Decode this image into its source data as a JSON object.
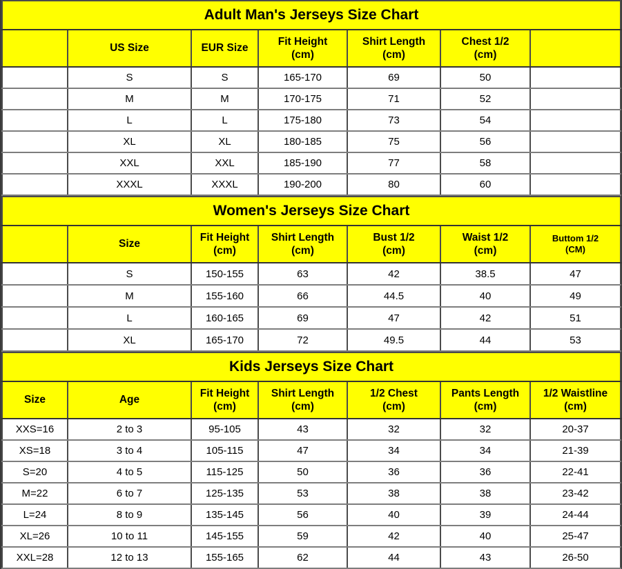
{
  "page": {
    "title": "Jerseys Size Charts"
  },
  "colors": {
    "section_bg": "#ffff00",
    "row_bg": "#ffffff",
    "text": "#000000",
    "grid_border": "#4a4a4a",
    "row_border": "#7d7d7d"
  },
  "tables": [
    {
      "title": "Adult Man's Jerseys Size Chart",
      "columns": [
        "",
        "US Size",
        "EUR Size",
        "Fit Height\n(cm)",
        "Shirt Length\n(cm)",
        "Chest 1/2\n(cm)",
        ""
      ],
      "rows": [
        [
          "",
          "S",
          "S",
          "165-170",
          "69",
          "50",
          ""
        ],
        [
          "",
          "M",
          "M",
          "170-175",
          "71",
          "52",
          ""
        ],
        [
          "",
          "L",
          "L",
          "175-180",
          "73",
          "54",
          ""
        ],
        [
          "",
          "XL",
          "XL",
          "180-185",
          "75",
          "56",
          ""
        ],
        [
          "",
          "XXL",
          "XXL",
          "185-190",
          "77",
          "58",
          ""
        ],
        [
          "",
          "XXXL",
          "XXXL",
          "190-200",
          "80",
          "60",
          ""
        ]
      ]
    },
    {
      "title": "Women's Jerseys Size Chart",
      "columns": [
        "",
        "Size",
        "Fit Height\n(cm)",
        "Shirt Length\n(cm)",
        "Bust 1/2\n(cm)",
        "Waist 1/2\n(cm)",
        "Buttom 1/2\n(CM)"
      ],
      "rows": [
        [
          "",
          "S",
          "150-155",
          "63",
          "42",
          "38.5",
          "47"
        ],
        [
          "",
          "M",
          "155-160",
          "66",
          "44.5",
          "40",
          "49"
        ],
        [
          "",
          "L",
          "160-165",
          "69",
          "47",
          "42",
          "51"
        ],
        [
          "",
          "XL",
          "165-170",
          "72",
          "49.5",
          "44",
          "53"
        ]
      ]
    },
    {
      "title": "Kids Jerseys Size Chart",
      "columns": [
        "Size",
        "Age",
        "Fit Height\n(cm)",
        "Shirt Length\n(cm)",
        "1/2 Chest\n(cm)",
        "Pants Length\n(cm)",
        "1/2 Waistline\n(cm)"
      ],
      "rows": [
        [
          "XXS=16",
          "2 to 3",
          "95-105",
          "43",
          "32",
          "32",
          "20-37"
        ],
        [
          "XS=18",
          "3 to 4",
          "105-115",
          "47",
          "34",
          "34",
          "21-39"
        ],
        [
          "S=20",
          "4 to 5",
          "115-125",
          "50",
          "36",
          "36",
          "22-41"
        ],
        [
          "M=22",
          "6 to 7",
          "125-135",
          "53",
          "38",
          "38",
          "23-42"
        ],
        [
          "L=24",
          "8 to 9",
          "135-145",
          "56",
          "40",
          "39",
          "24-44"
        ],
        [
          "XL=26",
          "10 to 11",
          "145-155",
          "59",
          "42",
          "40",
          "25-47"
        ],
        [
          "XXL=28",
          "12 to 13",
          "155-165",
          "62",
          "44",
          "43",
          "26-50"
        ]
      ]
    }
  ]
}
